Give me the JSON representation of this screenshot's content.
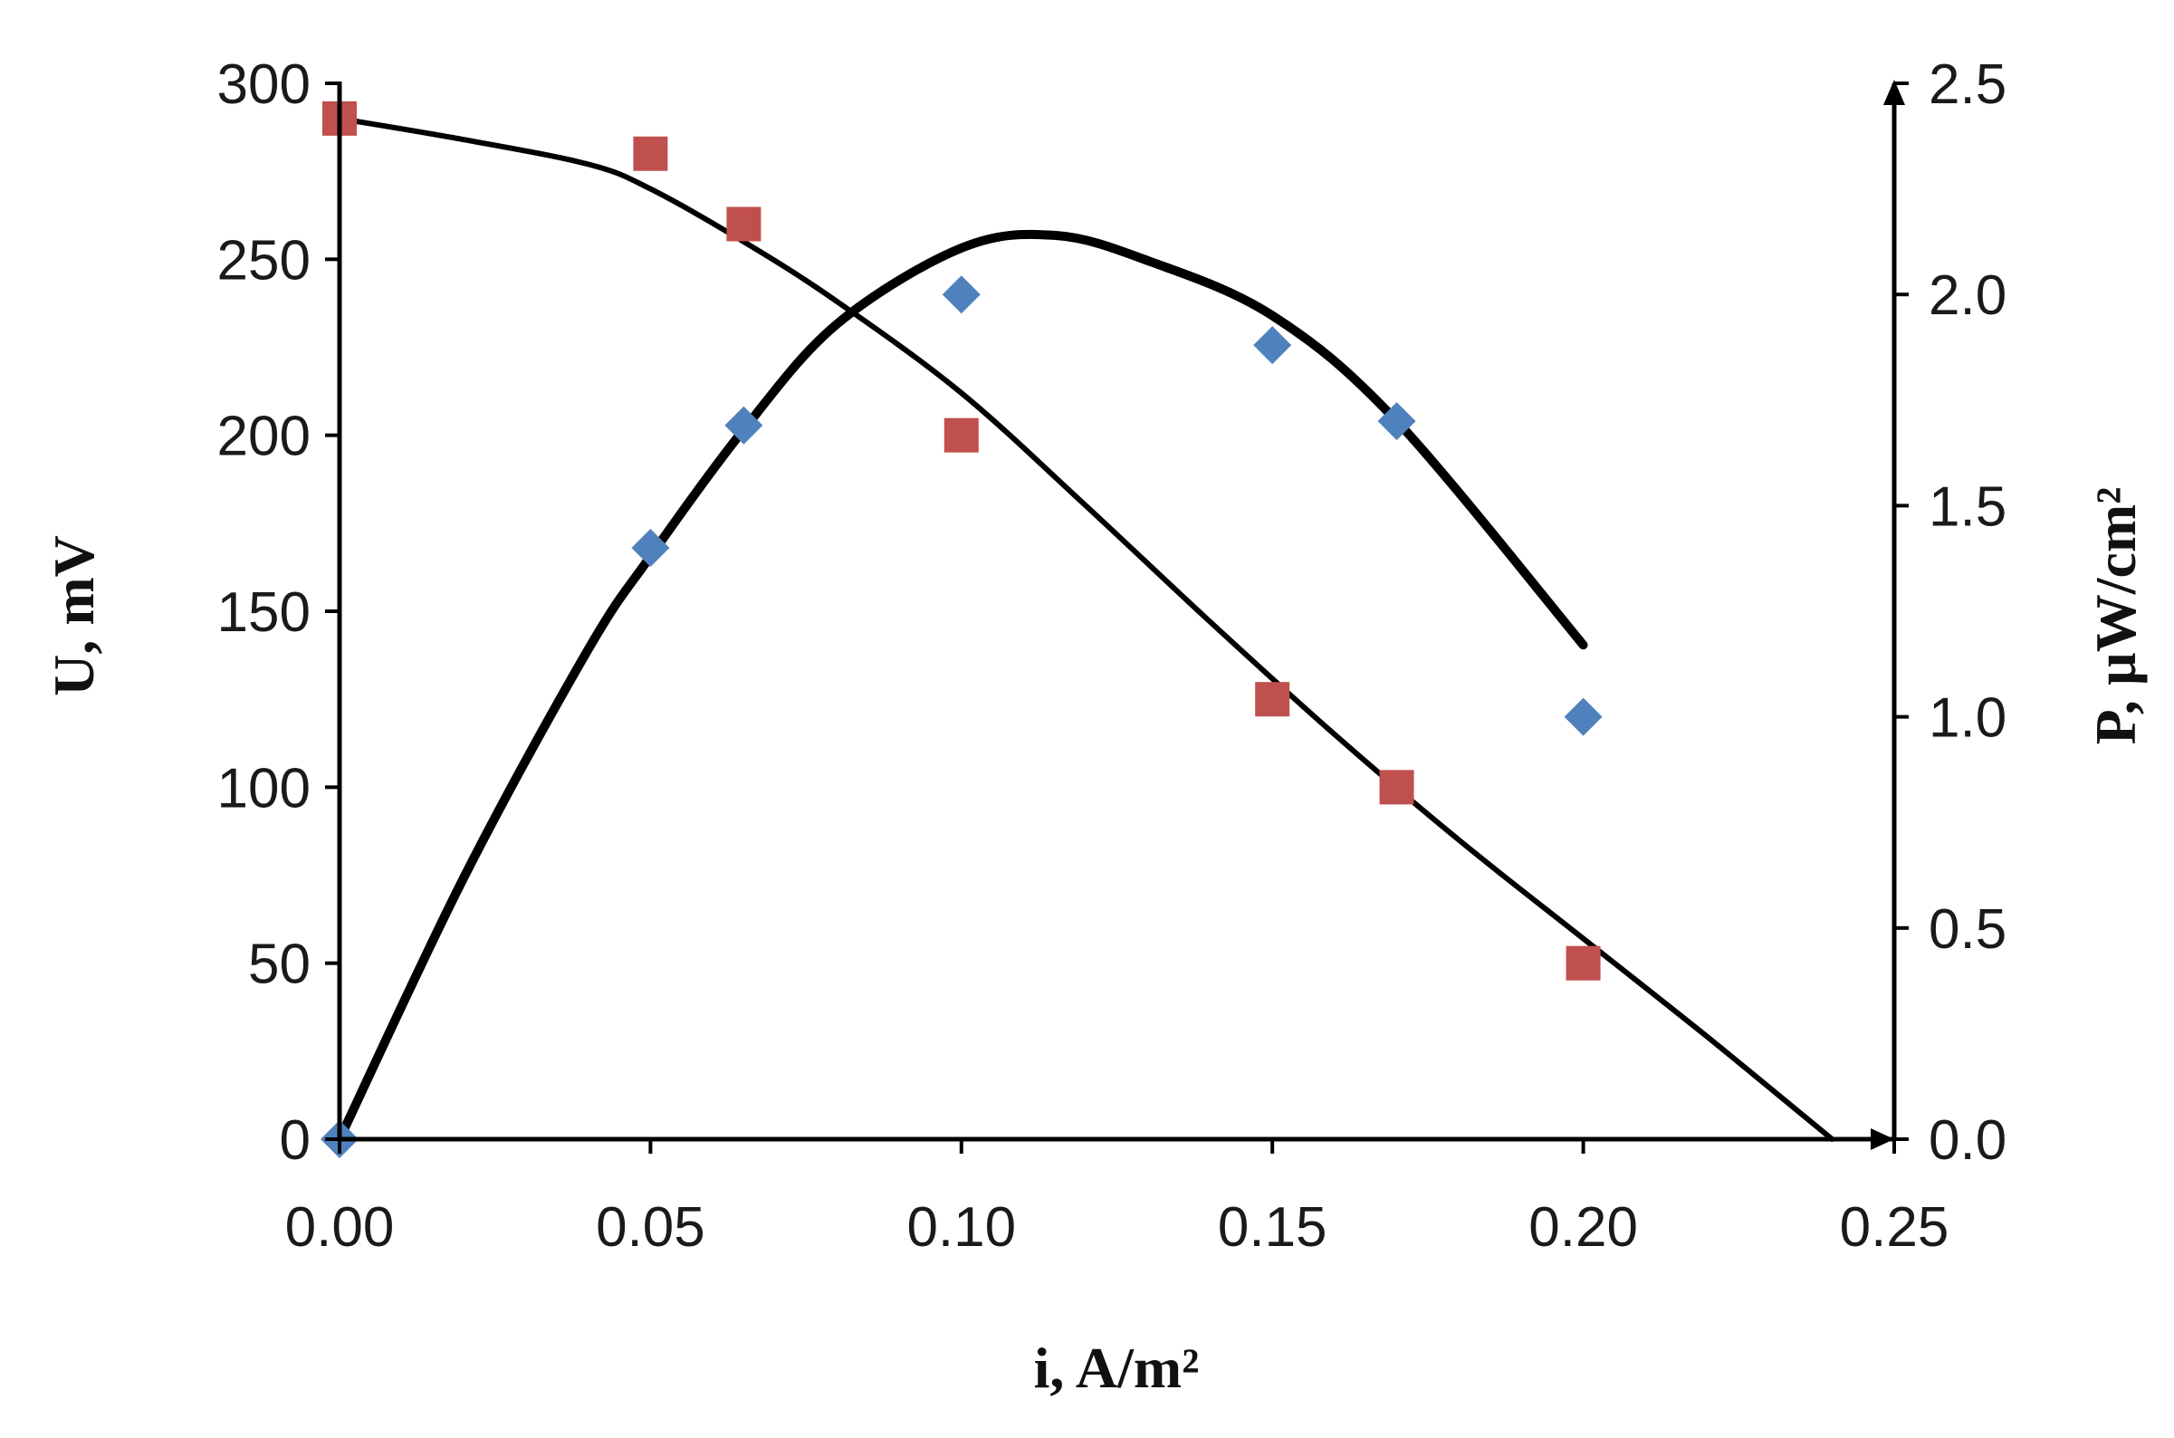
{
  "chart_data": {
    "type": "scatter",
    "title": "",
    "xlabel": "i, A/m²",
    "ylabel_left": "U, mV",
    "ylabel_right": "P, µW/cm²",
    "xlim": [
      0,
      0.25
    ],
    "ylim_left": [
      0,
      300
    ],
    "ylim_right": [
      0,
      2.5
    ],
    "grid": false,
    "legend": "none",
    "x_ticks": [
      "0.00",
      "0.05",
      "0.10",
      "0.15",
      "0.20",
      "0.25"
    ],
    "y_left_ticks": [
      "0",
      "50",
      "100",
      "150",
      "200",
      "250",
      "300"
    ],
    "y_right_ticks": [
      "0.0",
      "0.5",
      "1.0",
      "1.5",
      "2.0",
      "2.5"
    ],
    "series": [
      {
        "axis": "left",
        "marker": "square",
        "color": "#c0504d",
        "x": [
          0,
          0.05,
          0.065,
          0.1,
          0.15,
          0.17,
          0.2
        ],
        "y": [
          290,
          280,
          260,
          200,
          125,
          100,
          50
        ]
      },
      {
        "axis": "right",
        "marker": "diamond",
        "color": "#4f81bd",
        "x": [
          0,
          0.05,
          0.065,
          0.1,
          0.15,
          0.17,
          0.2
        ],
        "y": [
          0,
          1.4,
          1.69,
          2.0,
          1.88,
          1.7,
          1.0
        ]
      }
    ],
    "fit_curves": [
      {
        "axis": "left",
        "color": "#000000",
        "x": [
          0,
          0.02,
          0.04,
          0.05,
          0.065,
          0.08,
          0.1,
          0.12,
          0.14,
          0.16,
          0.18,
          0.2,
          0.22,
          0.24
        ],
        "y": [
          290,
          284,
          277,
          270,
          255,
          238,
          212,
          180,
          147,
          115,
          85,
          57,
          29,
          0
        ]
      },
      {
        "axis": "right",
        "color": "#000000",
        "x": [
          0,
          0.02,
          0.04,
          0.05,
          0.065,
          0.08,
          0.1,
          0.115,
          0.13,
          0.15,
          0.17,
          0.2
        ],
        "y": [
          0,
          0.62,
          1.16,
          1.38,
          1.68,
          1.93,
          2.11,
          2.14,
          2.08,
          1.95,
          1.7,
          1.17
        ]
      }
    ]
  }
}
